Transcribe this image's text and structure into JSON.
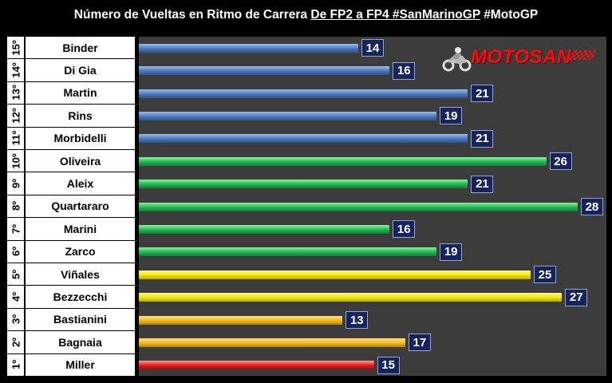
{
  "title": {
    "part1": "Número de Vueltas en Ritmo de Carrera",
    "part2": "De FP2 a FP4 #SanMarinoGP",
    "part3": "#MotoGP"
  },
  "logo": {
    "text": "MOTOSAN",
    "icon": "motorcycle-rider-icon",
    "color": "#e11111"
  },
  "chart_data": {
    "type": "bar",
    "orientation": "horizontal",
    "xlim": [
      0,
      28
    ],
    "grid": false,
    "rows": [
      {
        "rank": "15º",
        "name": "Binder",
        "value": 14,
        "color": "blue"
      },
      {
        "rank": "14º",
        "name": "Di Gia",
        "value": 16,
        "color": "blue"
      },
      {
        "rank": "13º",
        "name": "Martin",
        "value": 21,
        "color": "blue"
      },
      {
        "rank": "12º",
        "name": "Rins",
        "value": 19,
        "color": "blue"
      },
      {
        "rank": "11º",
        "name": "Morbidelli",
        "value": 21,
        "color": "blue"
      },
      {
        "rank": "10º",
        "name": "Oliveira",
        "value": 26,
        "color": "green"
      },
      {
        "rank": "9º",
        "name": "Aleix",
        "value": 21,
        "color": "green"
      },
      {
        "rank": "8º",
        "name": "Quartararo",
        "value": 28,
        "color": "green"
      },
      {
        "rank": "7º",
        "name": "Marini",
        "value": 16,
        "color": "green"
      },
      {
        "rank": "6º",
        "name": "Zarco",
        "value": 19,
        "color": "green"
      },
      {
        "rank": "5º",
        "name": "Viñales",
        "value": 25,
        "color": "yellow"
      },
      {
        "rank": "4º",
        "name": "Bezzecchi",
        "value": 27,
        "color": "yellow"
      },
      {
        "rank": "3º",
        "name": "Bastianini",
        "value": 13,
        "color": "gold"
      },
      {
        "rank": "2º",
        "name": "Bagnaia",
        "value": 17,
        "color": "gold"
      },
      {
        "rank": "1º",
        "name": "Miller",
        "value": 15,
        "color": "red"
      }
    ]
  }
}
